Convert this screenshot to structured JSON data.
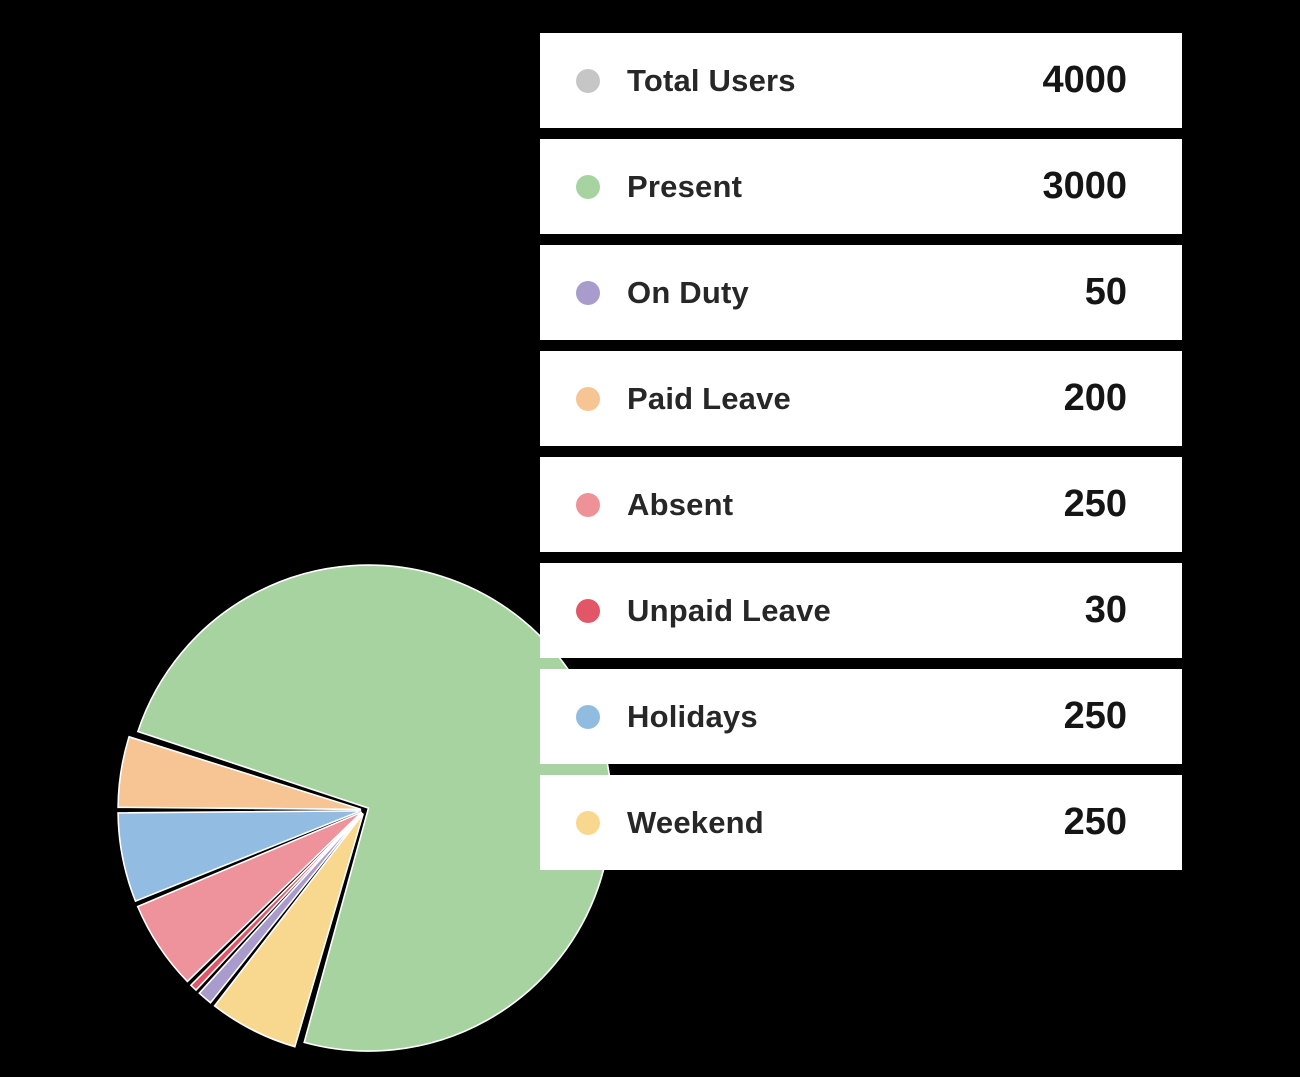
{
  "legend": {
    "items": [
      {
        "label": "Total Users",
        "value": "4000",
        "color": "#c6c6c6"
      },
      {
        "label": "Present",
        "value": "3000",
        "color": "#a7d3a1"
      },
      {
        "label": "On Duty",
        "value": "50",
        "color": "#a99bcb"
      },
      {
        "label": "Paid Leave",
        "value": "200",
        "color": "#f6c593"
      },
      {
        "label": "Absent",
        "value": "250",
        "color": "#ee9297"
      },
      {
        "label": "Unpaid Leave",
        "value": "30",
        "color": "#e25668"
      },
      {
        "label": "Holidays",
        "value": "250",
        "color": "#90bce0"
      },
      {
        "label": "Weekend",
        "value": "250",
        "color": "#f8d88f"
      }
    ]
  },
  "chart_data": {
    "type": "pie",
    "start_angle_deg": 180,
    "sweep_direction": "counterclockwise",
    "legend_position": "right",
    "background": "#000000",
    "slice_stroke": "#ffffff",
    "slices_draw_order": [
      {
        "name": "Holidays",
        "value": 250,
        "color": "#92bce1"
      },
      {
        "name": "Absent",
        "value": 250,
        "color": "#ee929c"
      },
      {
        "name": "Unpaid Leave",
        "value": 30,
        "color": "#e25668"
      },
      {
        "name": "On Duty",
        "value": 50,
        "color": "#a99ccd"
      },
      {
        "name": "Weekend",
        "value": 250,
        "color": "#f8d88f"
      },
      {
        "name": "Present",
        "value": 3000,
        "color": "#a7d3a1"
      },
      {
        "name": "Paid Leave",
        "value": 200,
        "color": "#f6c593"
      }
    ]
  }
}
